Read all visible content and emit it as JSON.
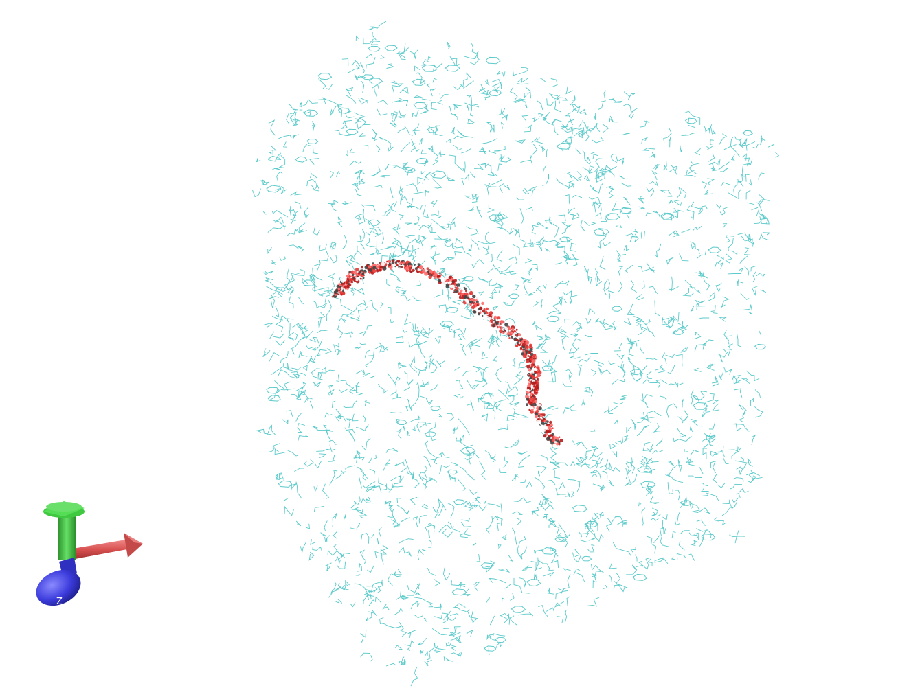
{
  "viewer": {
    "background_color": "#ffffff",
    "solvent_color": "#5ccaca",
    "polymer_colors": [
      "#e53935",
      "#ff6b6b",
      "#b71c1c",
      "#ffffff",
      "#444444"
    ]
  },
  "axes_indicator": {
    "x_color": "#e06060",
    "y_color": "#3cbf3c",
    "z_color": "#3b3bdc",
    "z_label": "Z"
  }
}
